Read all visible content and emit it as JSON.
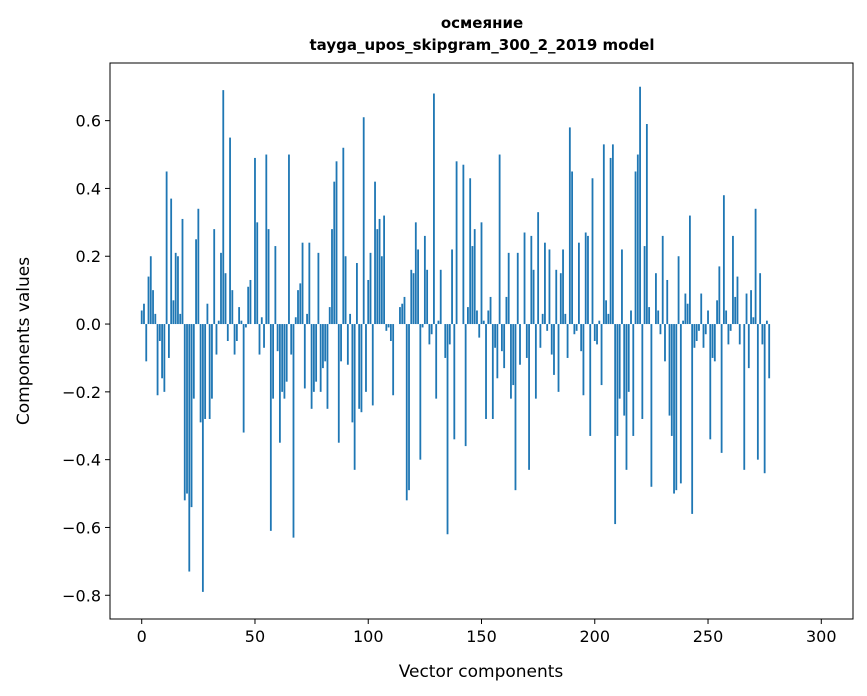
{
  "chart_data": {
    "type": "bar",
    "title": "осмеяние",
    "subtitle": "tayga_upos_skipgram_300_2_2019 model",
    "xlabel": "Vector components",
    "ylabel": "Components values",
    "xlim": [
      -14,
      314
    ],
    "ylim": [
      -0.87,
      0.77
    ],
    "xticks": [
      0,
      50,
      100,
      150,
      200,
      250,
      300
    ],
    "yticks": [
      -0.8,
      -0.6,
      -0.4,
      -0.2,
      0.0,
      0.2,
      0.4,
      0.6
    ],
    "ytick_labels": [
      "−0.8",
      "−0.6",
      "−0.4",
      "−0.2",
      "0.0",
      "0.2",
      "0.4",
      "0.6"
    ],
    "grid": false,
    "bar_color": "#1f77b4",
    "values": [
      0.04,
      0.06,
      -0.11,
      0.14,
      0.2,
      0.1,
      0.03,
      -0.21,
      -0.05,
      -0.16,
      -0.2,
      0.45,
      -0.1,
      0.37,
      0.07,
      0.21,
      0.2,
      0.03,
      0.31,
      -0.52,
      -0.5,
      -0.73,
      -0.54,
      -0.22,
      0.25,
      0.34,
      -0.29,
      -0.79,
      -0.28,
      0.06,
      -0.28,
      -0.22,
      0.28,
      -0.09,
      0.01,
      0.21,
      0.69,
      0.15,
      -0.05,
      0.55,
      0.1,
      -0.09,
      -0.05,
      0.05,
      0.01,
      -0.32,
      -0.01,
      0.11,
      0.13,
      0.0,
      0.49,
      0.3,
      -0.09,
      0.02,
      -0.07,
      0.5,
      0.28,
      -0.61,
      -0.22,
      0.23,
      -0.08,
      -0.35,
      -0.2,
      -0.22,
      -0.17,
      0.5,
      -0.09,
      -0.63,
      0.02,
      0.1,
      0.12,
      0.24,
      -0.19,
      0.03,
      0.24,
      -0.25,
      -0.2,
      -0.17,
      0.21,
      -0.2,
      -0.13,
      -0.11,
      -0.25,
      0.05,
      0.28,
      0.42,
      0.48,
      -0.35,
      -0.11,
      0.52,
      0.2,
      -0.12,
      0.03,
      -0.29,
      -0.43,
      0.18,
      -0.25,
      -0.26,
      0.61,
      -0.2,
      0.13,
      0.21,
      -0.24,
      0.42,
      0.28,
      0.31,
      0.2,
      0.32,
      -0.02,
      -0.01,
      -0.05,
      -0.21,
      0.0,
      0.0,
      0.05,
      0.06,
      0.08,
      -0.52,
      -0.49,
      0.16,
      0.15,
      0.3,
      0.22,
      -0.4,
      -0.01,
      0.26,
      0.16,
      -0.06,
      -0.03,
      0.68,
      -0.22,
      0.01,
      0.16,
      0.0,
      -0.1,
      -0.62,
      -0.06,
      0.22,
      -0.34,
      0.48,
      0.0,
      0.0,
      0.47,
      -0.36,
      0.05,
      0.43,
      0.23,
      0.28,
      0.04,
      -0.04,
      0.3,
      0.01,
      -0.28,
      0.04,
      0.08,
      -0.28,
      -0.07,
      -0.16,
      0.5,
      -0.08,
      -0.13,
      0.08,
      0.21,
      -0.22,
      -0.18,
      -0.49,
      0.21,
      -0.12,
      0.0,
      0.27,
      -0.1,
      -0.43,
      0.26,
      0.16,
      -0.22,
      0.33,
      -0.07,
      0.03,
      0.24,
      -0.02,
      0.22,
      -0.09,
      -0.15,
      0.16,
      -0.2,
      0.15,
      0.22,
      0.03,
      -0.1,
      0.58,
      0.45,
      -0.03,
      -0.02,
      0.24,
      -0.08,
      -0.21,
      0.27,
      0.26,
      -0.33,
      0.43,
      -0.05,
      -0.06,
      0.01,
      -0.18,
      0.53,
      0.07,
      0.03,
      0.49,
      0.53,
      -0.59,
      -0.33,
      -0.22,
      0.22,
      -0.27,
      -0.43,
      -0.2,
      0.04,
      -0.33,
      0.45,
      0.5,
      0.7,
      -0.28,
      0.23,
      0.59,
      0.05,
      -0.48,
      0.0,
      0.15,
      0.04,
      -0.03,
      0.26,
      -0.11,
      0.13,
      -0.27,
      -0.33,
      -0.5,
      -0.49,
      0.2,
      -0.47,
      0.01,
      0.09,
      0.06,
      0.32,
      -0.56,
      -0.07,
      -0.05,
      -0.02,
      0.09,
      -0.07,
      -0.03,
      0.04,
      -0.34,
      -0.1,
      -0.11,
      0.07,
      0.17,
      -0.38,
      0.38,
      0.04,
      -0.06,
      -0.02,
      0.26,
      0.08,
      0.14,
      -0.06,
      0.0,
      -0.43,
      0.09,
      -0.13,
      0.1,
      0.02,
      0.34,
      -0.4,
      0.15,
      -0.06,
      -0.44,
      0.01,
      -0.16
    ]
  }
}
